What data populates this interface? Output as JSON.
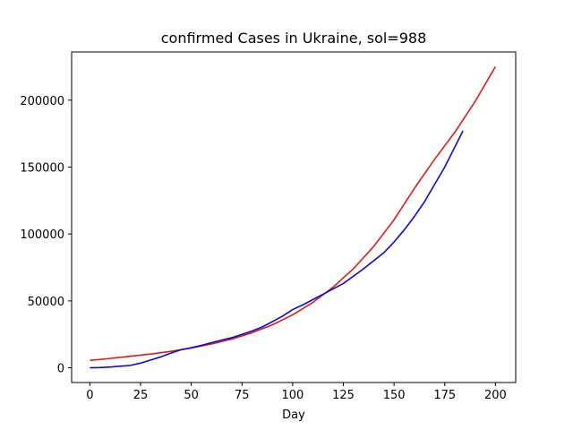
{
  "chart_data": {
    "type": "line",
    "title": "confirmed Cases in Ukraine, sol=988",
    "xlabel": "Day",
    "ylabel": "",
    "xlim": [
      -9,
      210
    ],
    "ylim": [
      -11000,
      236000
    ],
    "xticks": [
      0,
      25,
      50,
      75,
      100,
      125,
      150,
      175,
      200
    ],
    "yticks": [
      0,
      50000,
      100000,
      150000,
      200000
    ],
    "grid": false,
    "legend": "none",
    "series": [
      {
        "color": "#e01a1a",
        "x": [
          0,
          10,
          20,
          30,
          40,
          50,
          60,
          70,
          80,
          90,
          100,
          110,
          120,
          130,
          140,
          150,
          160,
          170,
          180,
          190,
          200
        ],
        "y": [
          5500,
          7000,
          8600,
          10300,
          12300,
          14800,
          17800,
          21500,
          26200,
          32100,
          39600,
          48900,
          60300,
          74100,
          90700,
          110600,
          134000,
          155800,
          176000,
          199000,
          225000
        ]
      },
      {
        "color": "#0a0acc",
        "x": [
          0,
          5,
          10,
          15,
          20,
          25,
          30,
          35,
          40,
          45,
          50,
          55,
          60,
          65,
          70,
          75,
          80,
          85,
          90,
          95,
          100,
          105,
          110,
          115,
          120,
          125,
          130,
          135,
          140,
          145,
          150,
          155,
          160,
          165,
          170,
          175,
          180,
          184
        ],
        "y": [
          0,
          200,
          600,
          1200,
          1800,
          3500,
          5800,
          8200,
          11000,
          13500,
          15000,
          16800,
          18800,
          20700,
          22500,
          25000,
          27500,
          30500,
          34500,
          38600,
          43500,
          47000,
          51000,
          55000,
          59000,
          63000,
          68500,
          74000,
          80000,
          86000,
          94000,
          103000,
          113000,
          124000,
          137000,
          150000,
          165000,
          177000
        ]
      }
    ]
  }
}
